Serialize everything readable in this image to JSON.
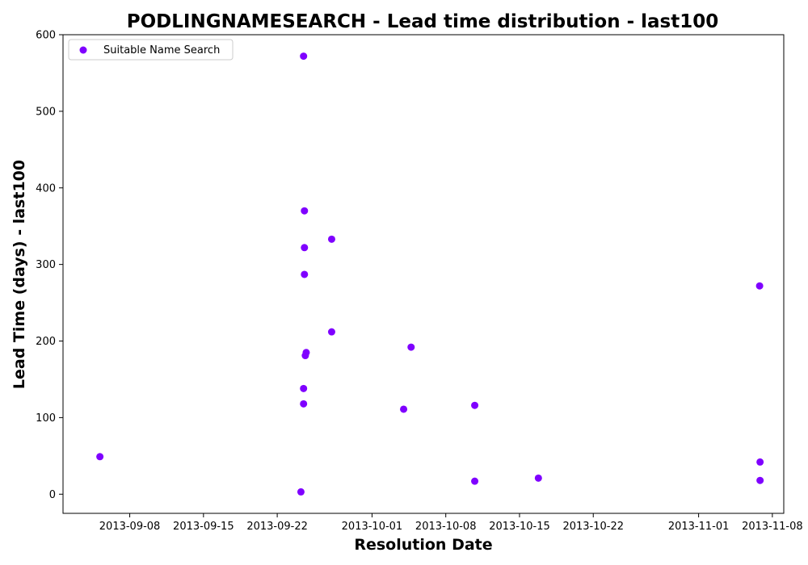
{
  "chart_data": {
    "type": "scatter",
    "title": "PODLINGNAMESEARCH - Lead time distribution - last100",
    "xlabel": "Resolution Date",
    "ylabel": "Lead Time (days) - last100",
    "xlim": [
      "2013-09-01T16:00",
      "2013-11-09T02:00"
    ],
    "ylim": [
      -25,
      600
    ],
    "x_ticks": [
      "2013-09-08",
      "2013-09-15",
      "2013-09-22",
      "2013-10-01",
      "2013-10-08",
      "2013-10-15",
      "2013-10-22",
      "2013-11-01",
      "2013-11-08"
    ],
    "y_ticks": [
      0,
      100,
      200,
      300,
      400,
      500,
      600
    ],
    "grid": false,
    "legend_position": "upper-left",
    "series": [
      {
        "name": "Suitable Name Search",
        "color": "#7f00ff",
        "points": [
          {
            "x": "2013-09-05T04:00",
            "y": 49
          },
          {
            "x": "2013-09-24T06:00",
            "y": 3
          },
          {
            "x": "2013-09-24T12:00",
            "y": 572
          },
          {
            "x": "2013-09-24T12:00",
            "y": 138
          },
          {
            "x": "2013-09-24T12:00",
            "y": 118
          },
          {
            "x": "2013-09-24T14:00",
            "y": 370
          },
          {
            "x": "2013-09-24T14:00",
            "y": 322
          },
          {
            "x": "2013-09-24T14:00",
            "y": 287
          },
          {
            "x": "2013-09-24T16:00",
            "y": 181
          },
          {
            "x": "2013-09-24T18:00",
            "y": 185
          },
          {
            "x": "2013-09-27T04:00",
            "y": 333
          },
          {
            "x": "2013-09-27T04:00",
            "y": 212
          },
          {
            "x": "2013-10-04T00:00",
            "y": 111
          },
          {
            "x": "2013-10-04T17:00",
            "y": 192
          },
          {
            "x": "2013-10-10T18:00",
            "y": 116
          },
          {
            "x": "2013-10-10T18:00",
            "y": 17
          },
          {
            "x": "2013-10-16T19:00",
            "y": 21
          },
          {
            "x": "2013-11-06T19:00",
            "y": 272
          },
          {
            "x": "2013-11-06T20:00",
            "y": 42
          },
          {
            "x": "2013-11-06T20:00",
            "y": 18
          }
        ]
      }
    ]
  }
}
